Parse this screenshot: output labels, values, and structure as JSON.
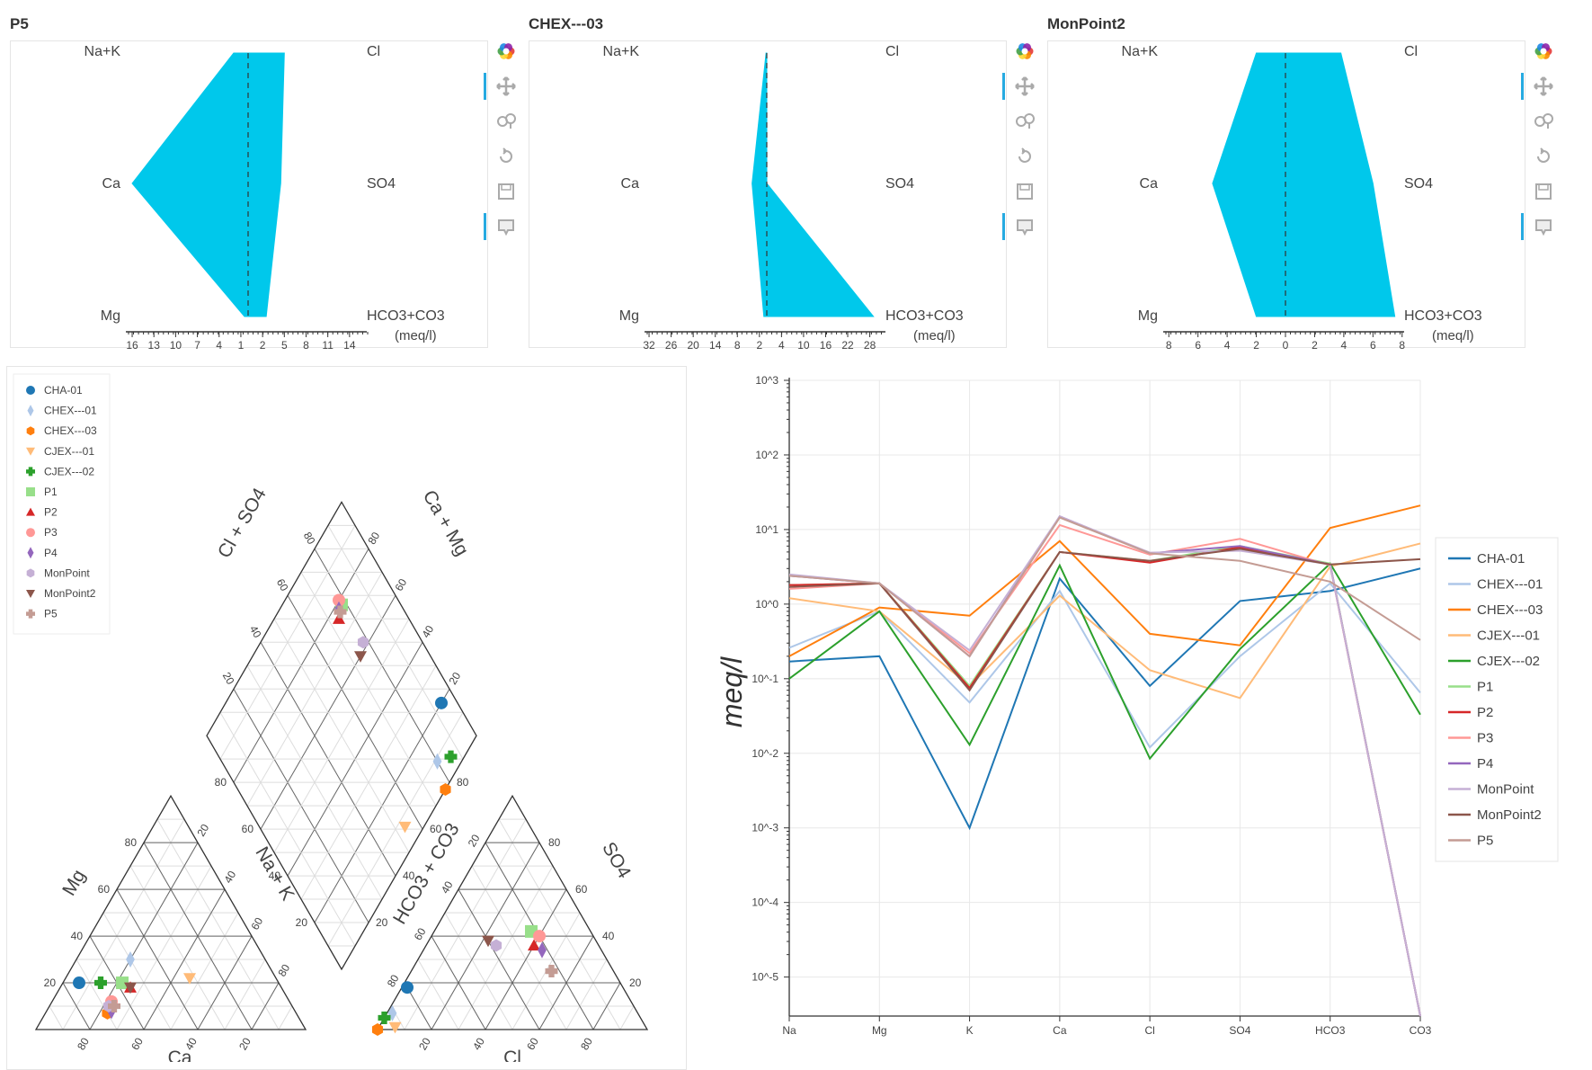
{
  "colors": {
    "stiff_fill": "#00c8eb",
    "CHA-01": "#1f77b4",
    "CHEX---01": "#aec7e8",
    "CHEX---03": "#ff7f0e",
    "CJEX---01": "#ffbb78",
    "CJEX---02": "#2ca02c",
    "P1": "#98df8a",
    "P2": "#d62728",
    "P3": "#ff9896",
    "P4": "#9467bd",
    "MonPoint": "#c5b0d5",
    "MonPoint2": "#8c564b",
    "P5": "#c49c94"
  },
  "toolbar": {
    "icons": [
      "bokeh-logo-icon",
      "pan-icon",
      "wheel-zoom-icon",
      "reset-icon",
      "save-icon",
      "hover-icon"
    ]
  },
  "stiff_diagrams": [
    {
      "title": "P5",
      "cations": [
        "Na+K",
        "Ca",
        "Mg"
      ],
      "anions": [
        "Cl",
        "SO4",
        "HCO3+CO3"
      ],
      "cation_values": [
        2,
        16,
        0.5
      ],
      "anion_values": [
        5,
        4.5,
        2.5
      ],
      "axis_max": 16.5,
      "ticks": [
        "16",
        "13",
        "10",
        "7",
        "4",
        "1",
        "2",
        "5",
        "8",
        "11",
        "14"
      ],
      "tick_values": [
        -16,
        -13,
        -10,
        -7,
        -4,
        -1,
        2,
        5,
        8,
        11,
        14
      ],
      "unit": "(meq/l)"
    },
    {
      "title": "CHEX---03",
      "cations": [
        "Na+K",
        "Ca",
        "Mg"
      ],
      "anions": [
        "Cl",
        "SO4",
        "HCO3+CO3"
      ],
      "cation_values": [
        0.2,
        4,
        0.8
      ],
      "anion_values": [
        0,
        0,
        29
      ],
      "axis_max": 32.5,
      "ticks": [
        "32",
        "26",
        "20",
        "14",
        "8",
        "2",
        "4",
        "10",
        "16",
        "22",
        "28"
      ],
      "tick_values": [
        -32,
        -26,
        -20,
        -14,
        -8,
        -2,
        4,
        10,
        16,
        22,
        28
      ],
      "unit": "(meq/l)"
    },
    {
      "title": "MonPoint2",
      "cations": [
        "Na+K",
        "Ca",
        "Mg"
      ],
      "anions": [
        "Cl",
        "SO4",
        "HCO3+CO3"
      ],
      "cation_values": [
        2,
        5,
        2
      ],
      "anion_values": [
        3.8,
        6,
        7.5
      ],
      "axis_max": 8.2,
      "ticks": [
        "8",
        "6",
        "4",
        "2",
        "0",
        "2",
        "4",
        "6",
        "8"
      ],
      "tick_values": [
        -8,
        -6,
        -4,
        -2,
        0,
        2,
        4,
        6,
        8
      ],
      "unit": "(meq/l)"
    }
  ],
  "piper": {
    "legend": [
      "CHA-01",
      "CHEX---01",
      "CHEX---03",
      "CJEX---01",
      "CJEX---02",
      "P1",
      "P2",
      "P3",
      "P4",
      "MonPoint",
      "MonPoint2",
      "P5"
    ],
    "markers": {
      "CHA-01": "circle",
      "CHEX---01": "diamond",
      "CHEX---03": "hexagon",
      "CJEX---01": "triangle-down",
      "CJEX---02": "plus",
      "P1": "square",
      "P2": "triangle",
      "P3": "circle",
      "P4": "diamond",
      "MonPoint": "hexagon",
      "MonPoint2": "triangle-down",
      "P5": "plus"
    },
    "axis_labels": {
      "mg": "Mg",
      "ca": "Ca",
      "nak": "Na + K",
      "hco3": "HCO3 + CO3",
      "cl": "Cl",
      "so4": "SO4",
      "clso4": "Cl + SO4",
      "camg": "Ca + Mg"
    },
    "tick_labels": [
      "20",
      "40",
      "60",
      "80"
    ],
    "cation_percent": {
      "CHA-01": {
        "ca": 74,
        "mg": 20
      },
      "CHEX---01": {
        "ca": 50,
        "mg": 30
      },
      "CHEX---03": {
        "ca": 70,
        "mg": 7
      },
      "CJEX---01": {
        "ca": 32,
        "mg": 22
      },
      "CJEX---02": {
        "ca": 66,
        "mg": 20
      },
      "P1": {
        "ca": 58,
        "mg": 20
      },
      "P2": {
        "ca": 56,
        "mg": 18
      },
      "P3": {
        "ca": 66,
        "mg": 12
      },
      "P4": {
        "ca": 68,
        "mg": 8
      },
      "MonPoint": {
        "ca": 68,
        "mg": 10
      },
      "MonPoint2": {
        "ca": 56,
        "mg": 18
      },
      "P5": {
        "ca": 66,
        "mg": 10
      }
    },
    "anion_percent": {
      "CHA-01": {
        "cl": 2,
        "so4": 18
      },
      "CHEX---01": {
        "cl": 2,
        "so4": 7
      },
      "CHEX---03": {
        "cl": 0,
        "so4": 0
      },
      "CJEX---01": {
        "cl": 6,
        "so4": 1
      },
      "CJEX---02": {
        "cl": 0,
        "so4": 5
      },
      "P1": {
        "cl": 36,
        "so4": 42
      },
      "P2": {
        "cl": 40,
        "so4": 36
      },
      "P3": {
        "cl": 40,
        "so4": 40
      },
      "P4": {
        "cl": 44,
        "so4": 34
      },
      "MonPoint": {
        "cl": 26,
        "so4": 36
      },
      "MonPoint2": {
        "cl": 22,
        "so4": 38
      },
      "P5": {
        "cl": 52,
        "so4": 25
      }
    }
  },
  "chart_data": {
    "type": "line",
    "title": "",
    "xlabel": "",
    "ylabel": "meq/l",
    "yscale": "log",
    "ylim": [
      3e-06,
      1000
    ],
    "y_tick_labels": [
      "10^3",
      "10^2",
      "10^1",
      "10^0",
      "10^-1",
      "10^-2",
      "10^-3",
      "10^-4",
      "10^-5"
    ],
    "y_tick_values": [
      1000,
      100,
      10,
      1,
      0.1,
      0.01,
      0.001,
      0.0001,
      1e-05
    ],
    "categories": [
      "Na",
      "Mg",
      "K",
      "Ca",
      "Cl",
      "SO4",
      "HCO3",
      "CO3"
    ],
    "legend_position": "right",
    "series": [
      {
        "name": "CHA-01",
        "values": [
          0.17,
          0.2,
          0.001,
          2.2,
          0.08,
          1.1,
          1.5,
          3
        ]
      },
      {
        "name": "CHEX---01",
        "values": [
          0.26,
          0.8,
          0.048,
          1.5,
          0.012,
          0.2,
          1.9,
          0.065
        ]
      },
      {
        "name": "CHEX---03",
        "values": [
          0.2,
          0.9,
          0.7,
          7,
          0.4,
          0.28,
          10.5,
          21
        ]
      },
      {
        "name": "CJEX---01",
        "values": [
          1.2,
          0.8,
          0.08,
          1.3,
          0.13,
          0.055,
          3.2,
          6.5
        ]
      },
      {
        "name": "CJEX---02",
        "values": [
          0.1,
          0.8,
          0.013,
          3.3,
          0.0085,
          0.25,
          3.5,
          0.033
        ]
      },
      {
        "name": "P1",
        "values": [
          1.8,
          1.9,
          0.08,
          5,
          3.8,
          6,
          3.5,
          3e-06
        ]
      },
      {
        "name": "P2",
        "values": [
          1.8,
          1.9,
          0.075,
          5,
          3.6,
          5.8,
          3.4,
          3e-06
        ]
      },
      {
        "name": "P3",
        "values": [
          1.6,
          1.9,
          0.22,
          11.5,
          4.6,
          7.5,
          3.3,
          3e-06
        ]
      },
      {
        "name": "P4",
        "values": [
          2.4,
          1.9,
          0.2,
          15,
          4.8,
          6,
          3.4,
          3e-06
        ]
      },
      {
        "name": "MonPoint",
        "values": [
          2.5,
          1.9,
          0.24,
          15,
          4.9,
          5.2,
          3.4,
          3e-06
        ]
      },
      {
        "name": "MonPoint2",
        "values": [
          1.7,
          1.9,
          0.07,
          5,
          3.8,
          5.5,
          3.4,
          4
        ]
      },
      {
        "name": "P5",
        "values": [
          2.4,
          1.9,
          0.2,
          14.5,
          4.8,
          3.8,
          2,
          0.33
        ]
      }
    ]
  }
}
